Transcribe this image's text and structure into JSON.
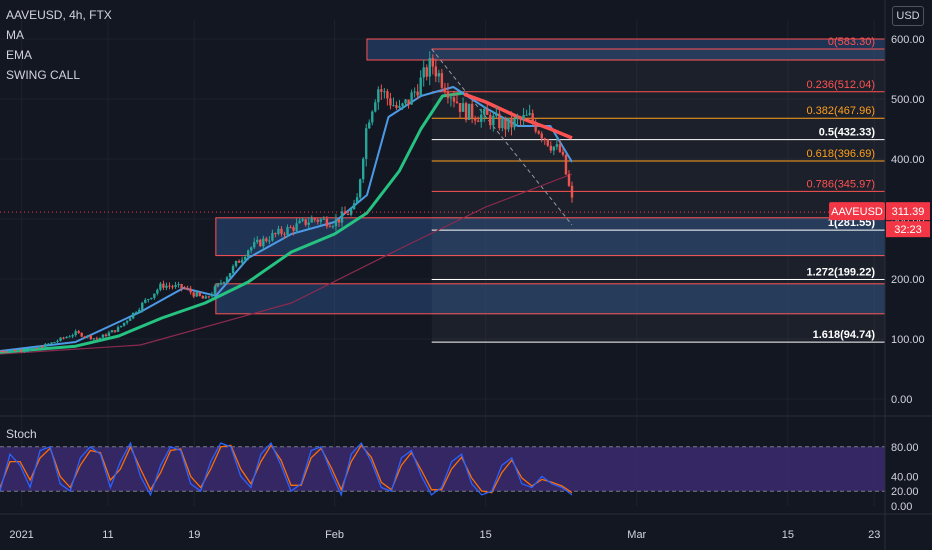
{
  "header": {
    "symbol_line": "AAVEUSD, 4h, FTX",
    "indicators": [
      "MA",
      "EMA",
      "SWING CALL"
    ],
    "currency_button": "USD",
    "oscillator_label": "Stoch"
  },
  "price_label": {
    "symbol": "AAVEUSD",
    "price": "311.39",
    "countdown": "32:23"
  },
  "colors": {
    "background": "#131722",
    "ema": "#26c281",
    "ma": "#4c9ae6",
    "long_ma": "#8c2a4e",
    "fib_red": "#ff5252",
    "fib_orange": "#ff9f1c",
    "fib_white": "#ffffff",
    "zone": "#2a4a7e",
    "stoch_bg": "#3c2a6e",
    "price_tag": "#f23645",
    "up_candle": "#26a69a",
    "down_candle": "#ef5350"
  },
  "chart_data": {
    "type": "candlestick",
    "x_tick_labels": [
      "2021",
      "11",
      "19",
      "Feb",
      "15",
      "Mar",
      "15",
      "23"
    ],
    "y_tick_labels": [
      "600.00",
      "500.00",
      "400.00",
      "300.00",
      "200.00",
      "100.00",
      "0.00"
    ],
    "y_ticks": [
      600,
      500,
      400,
      300,
      200,
      100,
      0
    ],
    "ylim": [
      -15,
      615
    ],
    "date_range": [
      "2021-01-01",
      "2021-03-24"
    ],
    "current_price": 311.39,
    "fib_levels": [
      {
        "label": "0(583.30)",
        "value": 583.3,
        "color": "red"
      },
      {
        "label": "0.236(512.04)",
        "value": 512.04,
        "color": "red"
      },
      {
        "label": "0.382(467.96)",
        "value": 467.96,
        "color": "orange"
      },
      {
        "label": "0.5(432.33)",
        "value": 432.33,
        "color": "white"
      },
      {
        "label": "0.618(396.69)",
        "value": 396.69,
        "color": "orange"
      },
      {
        "label": "0.786(345.97)",
        "value": 345.97,
        "color": "red"
      },
      {
        "label": "1(281.55)",
        "value": 281.55,
        "color": "white"
      },
      {
        "label": "1.272(199.22)",
        "value": 199.22,
        "color": "white"
      },
      {
        "label": "1.618(94.74)",
        "value": 94.74,
        "color": "white"
      }
    ],
    "zones": [
      {
        "from": "2021-02-04",
        "to": "2021-03-24",
        "low": 565,
        "high": 600
      },
      {
        "from": "2021-01-21",
        "to": "2021-03-24",
        "low": 239,
        "high": 302
      },
      {
        "from": "2021-01-21",
        "to": "2021-03-24",
        "low": 142,
        "high": 192
      }
    ],
    "price_path": [
      [
        "2021-01-01",
        80
      ],
      [
        "2021-01-04",
        82
      ],
      [
        "2021-01-06",
        95
      ],
      [
        "2021-01-08",
        110
      ],
      [
        "2021-01-10",
        100
      ],
      [
        "2021-01-12",
        118
      ],
      [
        "2021-01-14",
        155
      ],
      [
        "2021-01-16",
        190
      ],
      [
        "2021-01-18",
        185
      ],
      [
        "2021-01-20",
        165
      ],
      [
        "2021-01-22",
        205
      ],
      [
        "2021-01-24",
        250
      ],
      [
        "2021-01-26",
        270
      ],
      [
        "2021-01-28",
        285
      ],
      [
        "2021-01-30",
        300
      ],
      [
        "2021-02-01",
        295
      ],
      [
        "2021-02-03",
        320
      ],
      [
        "2021-02-04",
        460
      ],
      [
        "2021-02-05",
        520
      ],
      [
        "2021-02-07",
        480
      ],
      [
        "2021-02-08",
        500
      ],
      [
        "2021-02-10",
        560
      ],
      [
        "2021-02-11",
        530
      ],
      [
        "2021-02-13",
        480
      ],
      [
        "2021-02-15",
        470
      ],
      [
        "2021-02-17",
        455
      ],
      [
        "2021-02-19",
        470
      ],
      [
        "2021-02-21",
        425
      ],
      [
        "2021-02-22",
        410
      ],
      [
        "2021-02-23",
        330
      ],
      [
        "2021-02-23",
        311
      ]
    ],
    "ema_path": [
      [
        "2021-01-01",
        78
      ],
      [
        "2021-01-08",
        88
      ],
      [
        "2021-01-12",
        105
      ],
      [
        "2021-01-16",
        135
      ],
      [
        "2021-01-20",
        160
      ],
      [
        "2021-01-24",
        195
      ],
      [
        "2021-01-28",
        245
      ],
      [
        "2021-02-01",
        275
      ],
      [
        "2021-02-04",
        310
      ],
      [
        "2021-02-07",
        380
      ],
      [
        "2021-02-09",
        450
      ],
      [
        "2021-02-11",
        505
      ],
      [
        "2021-02-13",
        510
      ]
    ],
    "ma_path": [
      [
        "2021-01-01",
        80
      ],
      [
        "2021-01-08",
        95
      ],
      [
        "2021-01-14",
        145
      ],
      [
        "2021-01-18",
        185
      ],
      [
        "2021-01-21",
        172
      ],
      [
        "2021-01-24",
        235
      ],
      [
        "2021-01-28",
        275
      ],
      [
        "2021-02-01",
        295
      ],
      [
        "2021-02-04",
        340
      ],
      [
        "2021-02-06",
        470
      ],
      [
        "2021-02-09",
        505
      ],
      [
        "2021-02-12",
        520
      ],
      [
        "2021-02-15",
        485
      ],
      [
        "2021-02-18",
        455
      ],
      [
        "2021-02-21",
        455
      ],
      [
        "2021-02-23",
        395
      ]
    ],
    "red_ma_path": [
      [
        "2021-02-13",
        508
      ],
      [
        "2021-02-15",
        495
      ],
      [
        "2021-02-18",
        470
      ],
      [
        "2021-02-21",
        450
      ],
      [
        "2021-02-23",
        435
      ]
    ],
    "long_ma_path": [
      [
        "2021-01-01",
        75
      ],
      [
        "2021-01-14",
        90
      ],
      [
        "2021-01-28",
        160
      ],
      [
        "2021-02-07",
        250
      ],
      [
        "2021-02-15",
        320
      ],
      [
        "2021-02-23",
        375
      ]
    ],
    "stochastic": {
      "y_tick_labels": [
        "80.00",
        "40.00",
        "20.00",
        "0.00"
      ],
      "y_ticks": [
        80,
        40,
        20,
        0
      ],
      "band": [
        20,
        80
      ],
      "k": [
        20,
        70,
        55,
        25,
        75,
        80,
        30,
        20,
        65,
        80,
        70,
        25,
        60,
        85,
        40,
        15,
        55,
        80,
        75,
        30,
        20,
        60,
        85,
        80,
        40,
        25,
        70,
        85,
        55,
        20,
        30,
        75,
        80,
        45,
        15,
        70,
        85,
        60,
        25,
        20,
        65,
        75,
        40,
        15,
        25,
        60,
        70,
        30,
        15,
        20,
        55,
        65,
        30,
        25,
        40,
        30,
        25,
        15
      ],
      "d": [
        25,
        60,
        60,
        35,
        65,
        78,
        40,
        25,
        55,
        75,
        72,
        35,
        50,
        80,
        50,
        22,
        45,
        75,
        77,
        40,
        25,
        50,
        80,
        82,
        50,
        30,
        60,
        82,
        62,
        28,
        28,
        65,
        78,
        52,
        22,
        60,
        82,
        66,
        32,
        22,
        55,
        72,
        48,
        22,
        22,
        50,
        66,
        38,
        20,
        18,
        45,
        62,
        38,
        27,
        36,
        32,
        27,
        18
      ],
      "x_start": "2021-01-01",
      "x_end": "2021-02-23"
    }
  }
}
